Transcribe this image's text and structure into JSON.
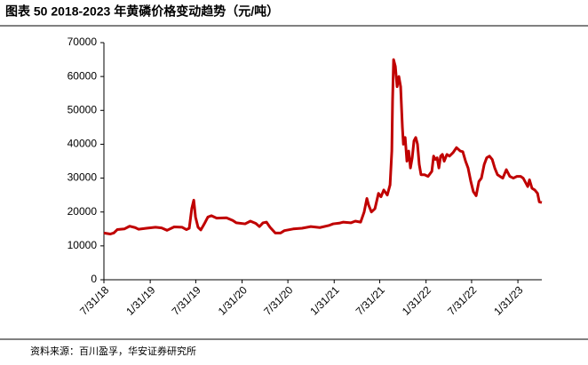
{
  "chart_data": {
    "type": "line",
    "title": "图表 50 2018-2023 年黄磷价格变动趋势（元/吨）",
    "source": "资料来源：百川盈孚，华安证券研究所",
    "ylim": [
      0,
      70000
    ],
    "yticks": [
      0,
      10000,
      20000,
      30000,
      40000,
      50000,
      60000,
      70000
    ],
    "xlim": [
      "2018-07-31",
      "2023-05-06"
    ],
    "xticks": [
      {
        "value": "2018-07-31",
        "label": "7/31/18"
      },
      {
        "value": "2019-01-31",
        "label": "1/31/19"
      },
      {
        "value": "2019-07-31",
        "label": "7/31/19"
      },
      {
        "value": "2020-01-31",
        "label": "1/31/20"
      },
      {
        "value": "2020-07-31",
        "label": "7/31/20"
      },
      {
        "value": "2021-01-31",
        "label": "1/31/21"
      },
      {
        "value": "2021-07-31",
        "label": "7/31/21"
      },
      {
        "value": "2022-01-31",
        "label": "1/31/22"
      },
      {
        "value": "2022-07-31",
        "label": "7/31/22"
      },
      {
        "value": "2023-01-31",
        "label": "1/31/23"
      }
    ],
    "grid": false,
    "x": [
      "2018-07-31",
      "2018-08-25",
      "2018-09-08",
      "2018-09-22",
      "2018-10-20",
      "2018-11-10",
      "2018-12-02",
      "2018-12-16",
      "2019-01-16",
      "2019-02-21",
      "2019-03-17",
      "2019-04-08",
      "2019-05-06",
      "2019-06-07",
      "2019-06-24",
      "2019-07-05",
      "2019-07-15",
      "2019-07-23",
      "2019-07-30",
      "2019-08-09",
      "2019-08-20",
      "2019-09-03",
      "2019-09-17",
      "2019-10-01",
      "2019-10-22",
      "2019-11-30",
      "2019-12-25",
      "2020-01-08",
      "2020-02-12",
      "2020-03-04",
      "2020-03-26",
      "2020-04-09",
      "2020-04-23",
      "2020-05-07",
      "2020-05-21",
      "2020-06-11",
      "2020-07-02",
      "2020-07-17",
      "2020-08-21",
      "2020-09-25",
      "2020-10-30",
      "2020-12-05",
      "2021-01-09",
      "2021-01-27",
      "2021-02-20",
      "2021-03-07",
      "2021-04-07",
      "2021-04-25",
      "2021-05-16",
      "2021-05-30",
      "2021-06-10",
      "2021-06-17",
      "2021-06-28",
      "2021-07-12",
      "2021-07-26",
      "2021-08-05",
      "2021-08-16",
      "2021-08-30",
      "2021-09-10",
      "2021-09-17",
      "2021-09-20",
      "2021-09-24",
      "2021-10-01",
      "2021-10-08",
      "2021-10-15",
      "2021-10-22",
      "2021-10-29",
      "2021-11-02",
      "2021-11-09",
      "2021-11-16",
      "2021-11-23",
      "2021-11-30",
      "2021-12-07",
      "2021-12-14",
      "2021-12-21",
      "2021-12-28",
      "2022-01-04",
      "2022-01-11",
      "2022-01-25",
      "2022-02-08",
      "2022-02-23",
      "2022-03-02",
      "2022-03-09",
      "2022-03-16",
      "2022-03-23",
      "2022-03-30",
      "2022-04-06",
      "2022-04-13",
      "2022-04-24",
      "2022-05-04",
      "2022-05-18",
      "2022-06-01",
      "2022-06-16",
      "2022-06-26",
      "2022-07-07",
      "2022-07-17",
      "2022-07-28",
      "2022-08-07",
      "2022-08-18",
      "2022-08-29",
      "2022-09-08",
      "2022-09-19",
      "2022-09-29",
      "2022-10-10",
      "2022-10-21",
      "2022-10-31",
      "2022-11-11",
      "2022-11-21",
      "2022-12-02",
      "2022-12-16",
      "2022-12-30",
      "2023-01-13",
      "2023-01-27",
      "2023-02-11",
      "2023-02-21",
      "2023-03-04",
      "2023-03-11",
      "2023-03-18",
      "2023-03-28",
      "2023-04-08",
      "2023-04-19",
      "2023-04-26",
      "2023-05-06"
    ],
    "series": [
      {
        "color": "#c00000",
        "values": [
          13800,
          13500,
          13800,
          14800,
          15000,
          15800,
          15400,
          14900,
          15200,
          15500,
          15300,
          14600,
          15600,
          15500,
          14800,
          15200,
          21000,
          23500,
          18500,
          15500,
          14700,
          16500,
          18500,
          18900,
          18200,
          18300,
          17500,
          16800,
          16500,
          17300,
          16600,
          15700,
          16800,
          17000,
          15500,
          13800,
          13800,
          14500,
          15000,
          15200,
          15700,
          15400,
          16000,
          16500,
          16700,
          17000,
          16800,
          17300,
          17000,
          20000,
          24000,
          22000,
          20000,
          21000,
          25500,
          24500,
          26500,
          25000,
          28000,
          38000,
          53000,
          65000,
          63000,
          57000,
          60000,
          57000,
          45000,
          40000,
          42000,
          35000,
          38000,
          33000,
          36000,
          41000,
          42000,
          40000,
          34000,
          31000,
          31000,
          30500,
          32000,
          36500,
          35500,
          36000,
          33000,
          36500,
          37000,
          35000,
          37000,
          36500,
          37500,
          39000,
          38000,
          37800,
          35000,
          33000,
          29000,
          26000,
          24800,
          29000,
          30000,
          34000,
          36000,
          36500,
          35500,
          33000,
          31000,
          30500,
          30000,
          32500,
          30500,
          30000,
          30500,
          30500,
          30000,
          28500,
          27500,
          29500,
          27000,
          26500,
          25500,
          23000,
          22800
        ]
      }
    ]
  }
}
